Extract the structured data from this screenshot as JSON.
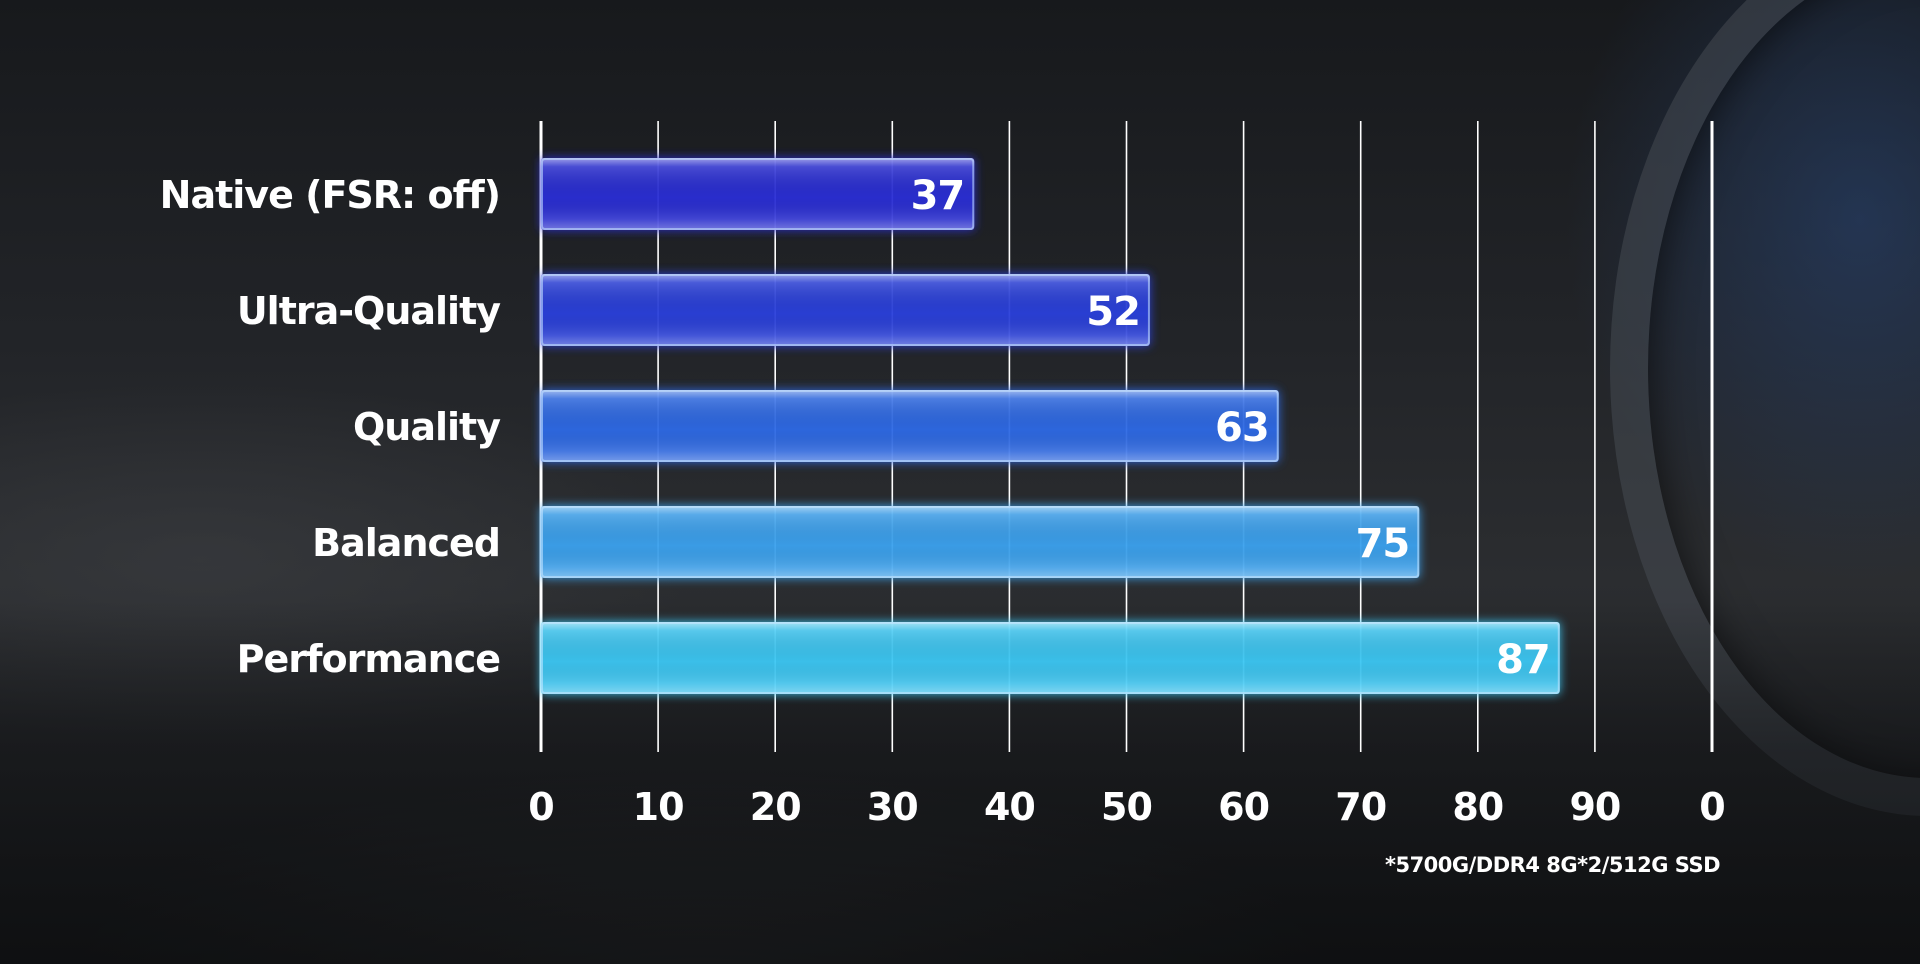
{
  "chart_data": {
    "type": "bar",
    "orientation": "horizontal",
    "categories": [
      "Native (FSR: off)",
      "Ultra-Quality",
      "Quality",
      "Balanced",
      "Performance"
    ],
    "values": [
      37,
      52,
      63,
      75,
      87
    ],
    "x_tick_labels": [
      "0",
      "10",
      "20",
      "30",
      "40",
      "50",
      "60",
      "70",
      "80",
      "90",
      "0"
    ],
    "xlim": [
      0,
      100
    ],
    "grid": true,
    "bar_colors": [
      "#2a2fd6",
      "#2a3fdc",
      "#2f6ae6",
      "#3aa2ef",
      "#3cc8f4"
    ],
    "footnote": "*5700G/DDR4 8G*2/512G SSD"
  }
}
